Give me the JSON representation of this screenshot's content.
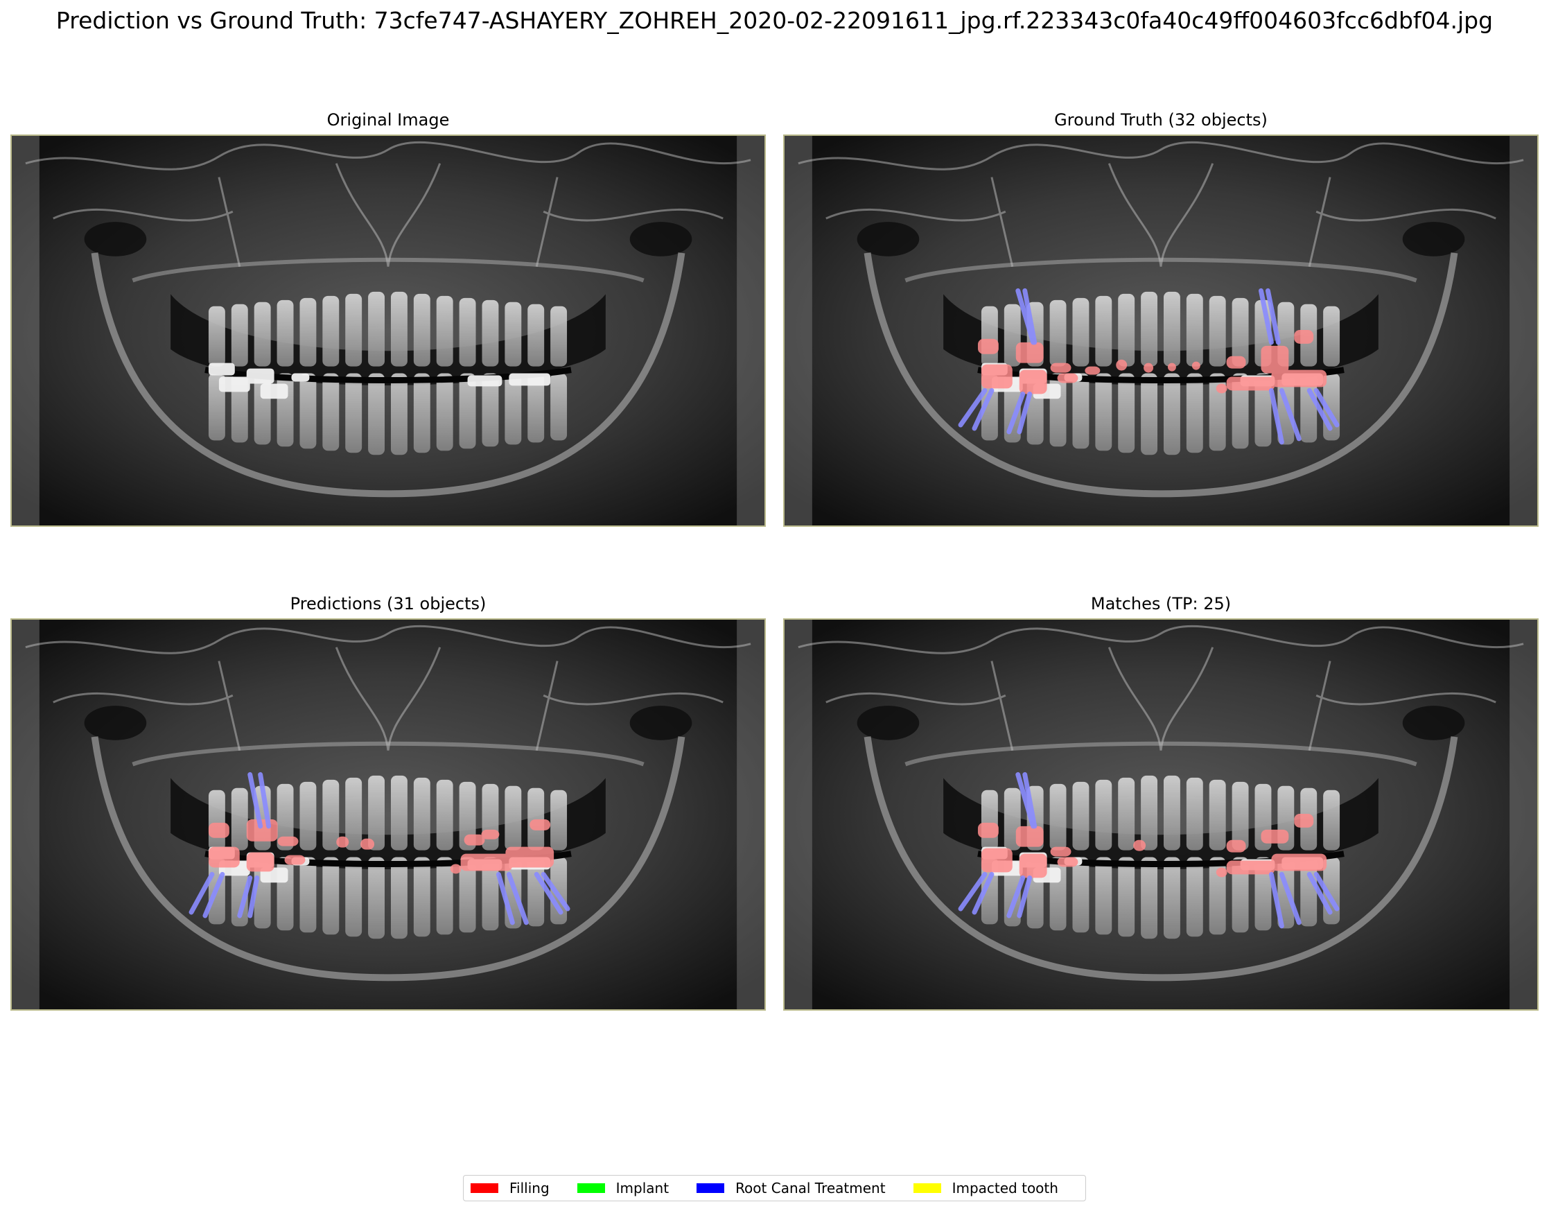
{
  "figure": {
    "title": "Prediction vs Ground Truth: 73cfe747-ASHAYERY_ZOHREH_2020-02-22091611_jpg.rf.223343c0fa40c49ff004603fcc6dbf04.jpg"
  },
  "panels": [
    {
      "id": "original",
      "title": "Original Image",
      "overlay": "none"
    },
    {
      "id": "ground_truth",
      "title": "Ground Truth (32 objects)",
      "overlay": "gt"
    },
    {
      "id": "predictions",
      "title": "Predictions (31 objects)",
      "overlay": "pred"
    },
    {
      "id": "matches",
      "title": "Matches (TP: 25)",
      "overlay": "match"
    }
  ],
  "legend": {
    "items": [
      {
        "label": "Filling",
        "color": "#ff0000"
      },
      {
        "label": "Implant",
        "color": "#00ff00"
      },
      {
        "label": "Root Canal Treatment",
        "color": "#0000ff"
      },
      {
        "label": "Impacted tooth",
        "color": "#ffff00"
      }
    ]
  },
  "overlay_colors": {
    "filling": "#ff8c8c",
    "root_canal": "#8a8cff"
  }
}
